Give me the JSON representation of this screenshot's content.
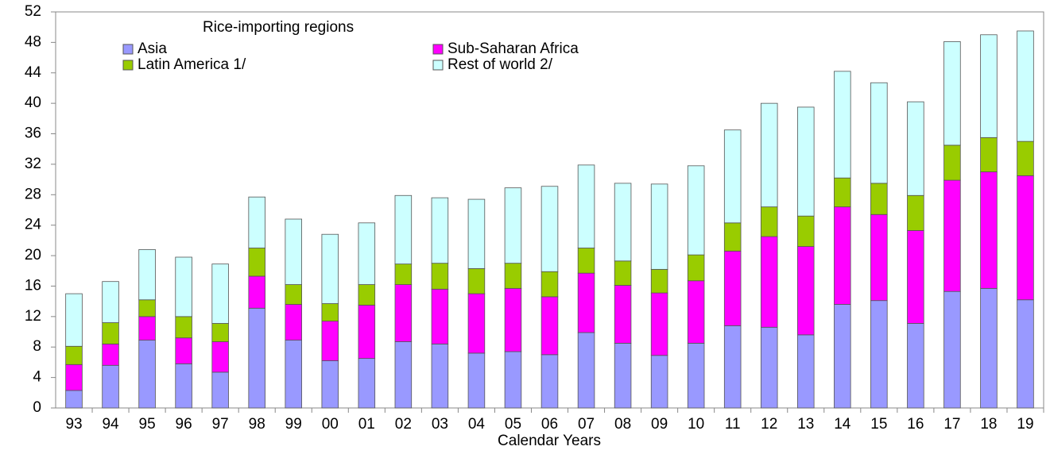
{
  "chart_data": {
    "type": "stacked_bar",
    "legend_title": "Rice-importing regions",
    "xlabel": "Calendar Years",
    "legend": "upper left",
    "grid": false,
    "categories": [
      "93",
      "94",
      "95",
      "96",
      "97",
      "98",
      "99",
      "00",
      "01",
      "02",
      "03",
      "04",
      "05",
      "06",
      "07",
      "08",
      "09",
      "10",
      "11",
      "12",
      "13",
      "14",
      "15",
      "16",
      "17",
      "18",
      "19"
    ],
    "series": [
      {
        "name": "Asia",
        "color": "#9999ff",
        "values": [
          2.3,
          5.6,
          8.9,
          5.8,
          4.7,
          13.1,
          8.9,
          6.2,
          6.5,
          8.7,
          8.4,
          7.2,
          7.4,
          7.0,
          9.9,
          8.5,
          6.9,
          8.5,
          10.8,
          10.6,
          9.6,
          13.6,
          14.1,
          11.1,
          15.3,
          15.7,
          14.2
        ]
      },
      {
        "name": "Sub-Saharan Africa",
        "color": "#ff00ff",
        "values": [
          3.4,
          2.8,
          3.1,
          3.4,
          4.0,
          4.2,
          4.7,
          5.2,
          7.0,
          7.5,
          7.2,
          7.8,
          8.3,
          7.6,
          7.8,
          7.6,
          8.2,
          8.2,
          9.8,
          11.9,
          11.6,
          12.8,
          11.3,
          12.2,
          14.6,
          15.3,
          16.3
        ]
      },
      {
        "name": "Latin America 1/",
        "color": "#99cc00",
        "values": [
          2.4,
          2.8,
          2.2,
          2.8,
          2.4,
          3.7,
          2.6,
          2.3,
          2.7,
          2.7,
          3.4,
          3.3,
          3.3,
          3.3,
          3.3,
          3.2,
          3.1,
          3.4,
          3.7,
          3.9,
          4.0,
          3.8,
          4.1,
          4.6,
          4.6,
          4.5,
          4.5
        ]
      },
      {
        "name": "Rest of world 2/",
        "color": "#ccffff",
        "values": [
          6.9,
          5.4,
          6.6,
          7.8,
          7.8,
          6.7,
          8.6,
          9.1,
          8.1,
          9.0,
          8.6,
          9.1,
          9.9,
          11.2,
          10.9,
          10.2,
          11.2,
          11.7,
          12.2,
          13.6,
          14.3,
          14.0,
          13.2,
          12.3,
          13.6,
          13.5,
          14.5
        ]
      }
    ],
    "ylim": [
      0,
      52
    ],
    "yticks": [
      0,
      4,
      8,
      12,
      16,
      20,
      24,
      28,
      32,
      36,
      40,
      44,
      48,
      52
    ]
  }
}
